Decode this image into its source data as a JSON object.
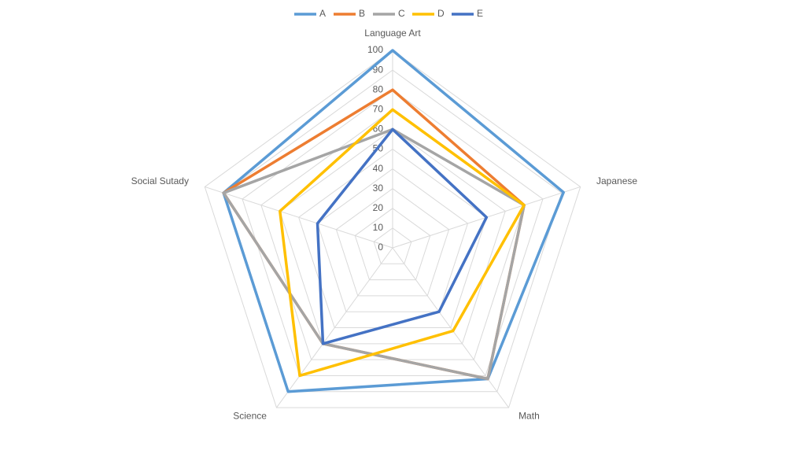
{
  "chart_data": {
    "type": "radar",
    "categories": [
      "Language Art",
      "Japanese",
      "Math",
      "Science",
      "Social Sutady"
    ],
    "series": [
      {
        "name": "A",
        "color": "#5b9bd5",
        "values": [
          100,
          91,
          82,
          90,
          90
        ]
      },
      {
        "name": "B",
        "color": "#ed7d31",
        "values": [
          80,
          70,
          82,
          60,
          90
        ]
      },
      {
        "name": "C",
        "color": "#a5a5a5",
        "values": [
          60,
          70,
          82,
          60,
          90
        ]
      },
      {
        "name": "D",
        "color": "#ffc000",
        "values": [
          70,
          70,
          52,
          80,
          60
        ]
      },
      {
        "name": "E",
        "color": "#4472c4",
        "values": [
          60,
          50,
          40,
          60,
          40
        ]
      }
    ],
    "ylim": [
      0,
      100
    ],
    "yticks": [
      0,
      10,
      20,
      30,
      40,
      50,
      60,
      70,
      80,
      90,
      100
    ],
    "grid": true,
    "legend": "top"
  }
}
